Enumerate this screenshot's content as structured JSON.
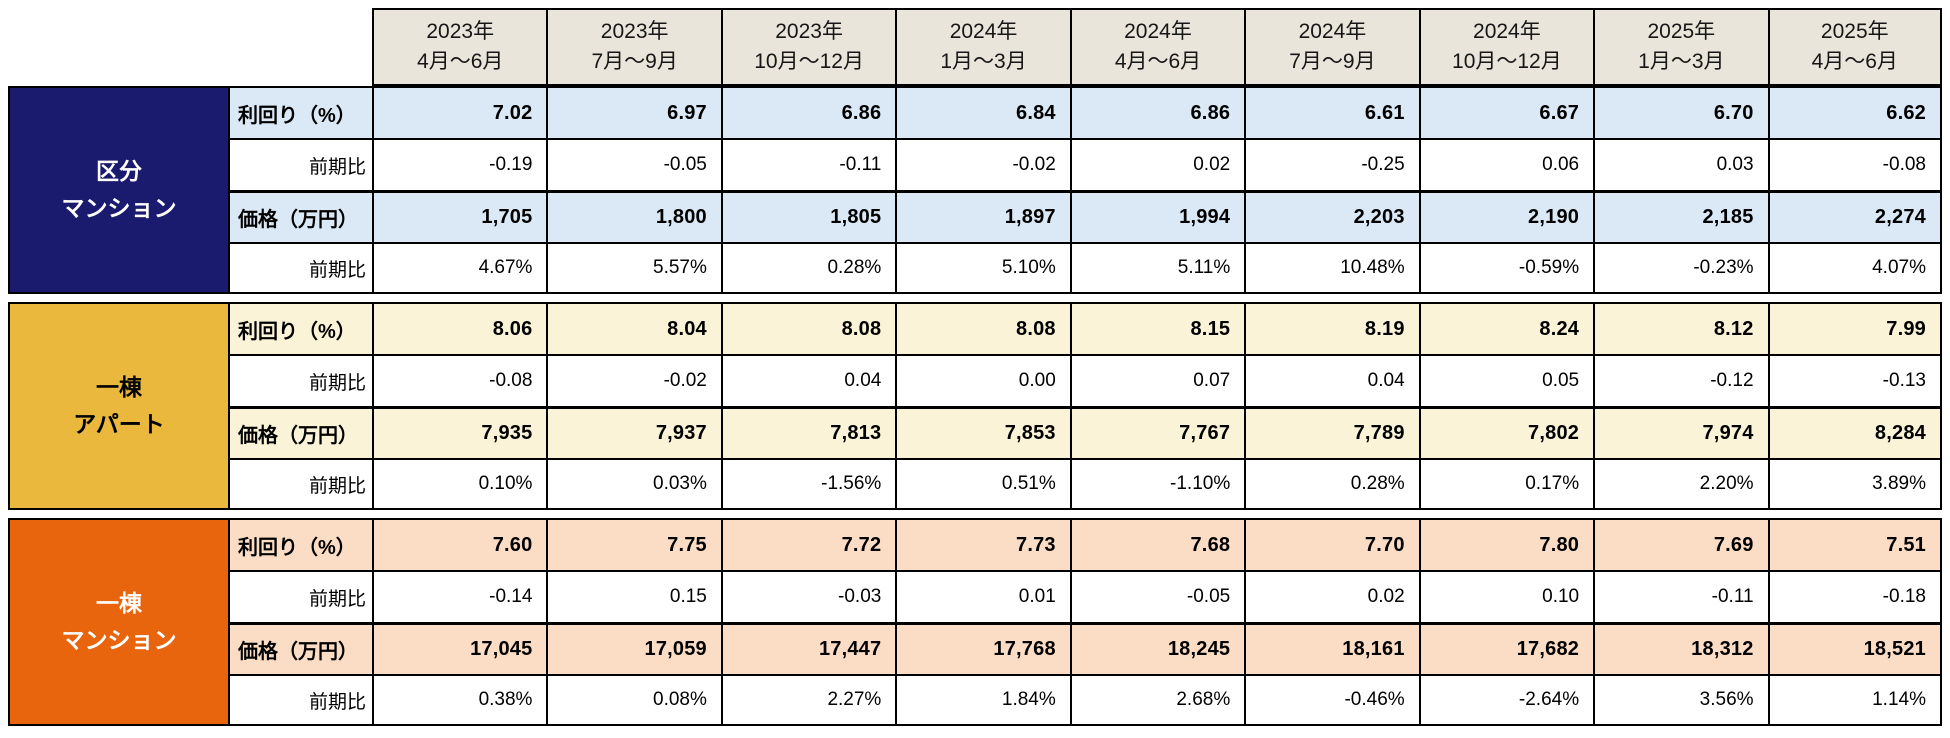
{
  "chart_data": {
    "type": "table",
    "description_rows": [
      "利回り（%）",
      "前期比",
      "価格（万円）",
      "前期比"
    ],
    "columns": [
      {
        "year": "2023年",
        "period": "4月〜6月"
      },
      {
        "year": "2023年",
        "period": "7月〜9月"
      },
      {
        "year": "2023年",
        "period": "10月〜12月"
      },
      {
        "year": "2024年",
        "period": "1月〜3月"
      },
      {
        "year": "2024年",
        "period": "4月〜6月"
      },
      {
        "year": "2024年",
        "period": "7月〜9月"
      },
      {
        "year": "2024年",
        "period": "10月〜12月"
      },
      {
        "year": "2025年",
        "period": "1月〜3月"
      },
      {
        "year": "2025年",
        "period": "4月〜6月"
      }
    ],
    "row_labels": {
      "yield": "利回り（%）",
      "qoq": "前期比",
      "price": "価格（万円）"
    },
    "header_bg_color": "#e9e5da",
    "sections": [
      {
        "name": "区分マンション",
        "label_lines": [
          "区分",
          "マンション"
        ],
        "block_color": "#1a1a6e",
        "block_text_color": "#ffffff",
        "highlight_color": "#dbe8f6",
        "yield": [
          "7.02",
          "6.97",
          "6.86",
          "6.84",
          "6.86",
          "6.61",
          "6.67",
          "6.70",
          "6.62"
        ],
        "yield_qoq": [
          "-0.19",
          "-0.05",
          "-0.11",
          "-0.02",
          "0.02",
          "-0.25",
          "0.06",
          "0.03",
          "-0.08"
        ],
        "price": [
          "1,705",
          "1,800",
          "1,805",
          "1,897",
          "1,994",
          "2,203",
          "2,190",
          "2,185",
          "2,274"
        ],
        "price_qoq": [
          "4.67%",
          "5.57%",
          "0.28%",
          "5.10%",
          "5.11%",
          "10.48%",
          "-0.59%",
          "-0.23%",
          "4.07%"
        ]
      },
      {
        "name": "一棟アパート",
        "label_lines": [
          "一棟",
          "アパート"
        ],
        "block_color": "#e9b83c",
        "block_text_color": "#000000",
        "highlight_color": "#faf3d7",
        "yield": [
          "8.06",
          "8.04",
          "8.08",
          "8.08",
          "8.15",
          "8.19",
          "8.24",
          "8.12",
          "7.99"
        ],
        "yield_qoq": [
          "-0.08",
          "-0.02",
          "0.04",
          "0.00",
          "0.07",
          "0.04",
          "0.05",
          "-0.12",
          "-0.13"
        ],
        "price": [
          "7,935",
          "7,937",
          "7,813",
          "7,853",
          "7,767",
          "7,789",
          "7,802",
          "7,974",
          "8,284"
        ],
        "price_qoq": [
          "0.10%",
          "0.03%",
          "-1.56%",
          "0.51%",
          "-1.10%",
          "0.28%",
          "0.17%",
          "2.20%",
          "3.89%"
        ]
      },
      {
        "name": "一棟マンション",
        "label_lines": [
          "一棟",
          "マンション"
        ],
        "block_color": "#e8650e",
        "block_text_color": "#ffffff",
        "highlight_color": "#fbdcc5",
        "yield": [
          "7.60",
          "7.75",
          "7.72",
          "7.73",
          "7.68",
          "7.70",
          "7.80",
          "7.69",
          "7.51"
        ],
        "yield_qoq": [
          "-0.14",
          "0.15",
          "-0.03",
          "0.01",
          "-0.05",
          "0.02",
          "0.10",
          "-0.11",
          "-0.18"
        ],
        "price": [
          "17,045",
          "17,059",
          "17,447",
          "17,768",
          "18,245",
          "18,161",
          "17,682",
          "18,312",
          "18,521"
        ],
        "price_qoq": [
          "0.38%",
          "0.08%",
          "2.27%",
          "1.84%",
          "2.68%",
          "-0.46%",
          "-2.64%",
          "3.56%",
          "1.14%"
        ]
      }
    ]
  }
}
